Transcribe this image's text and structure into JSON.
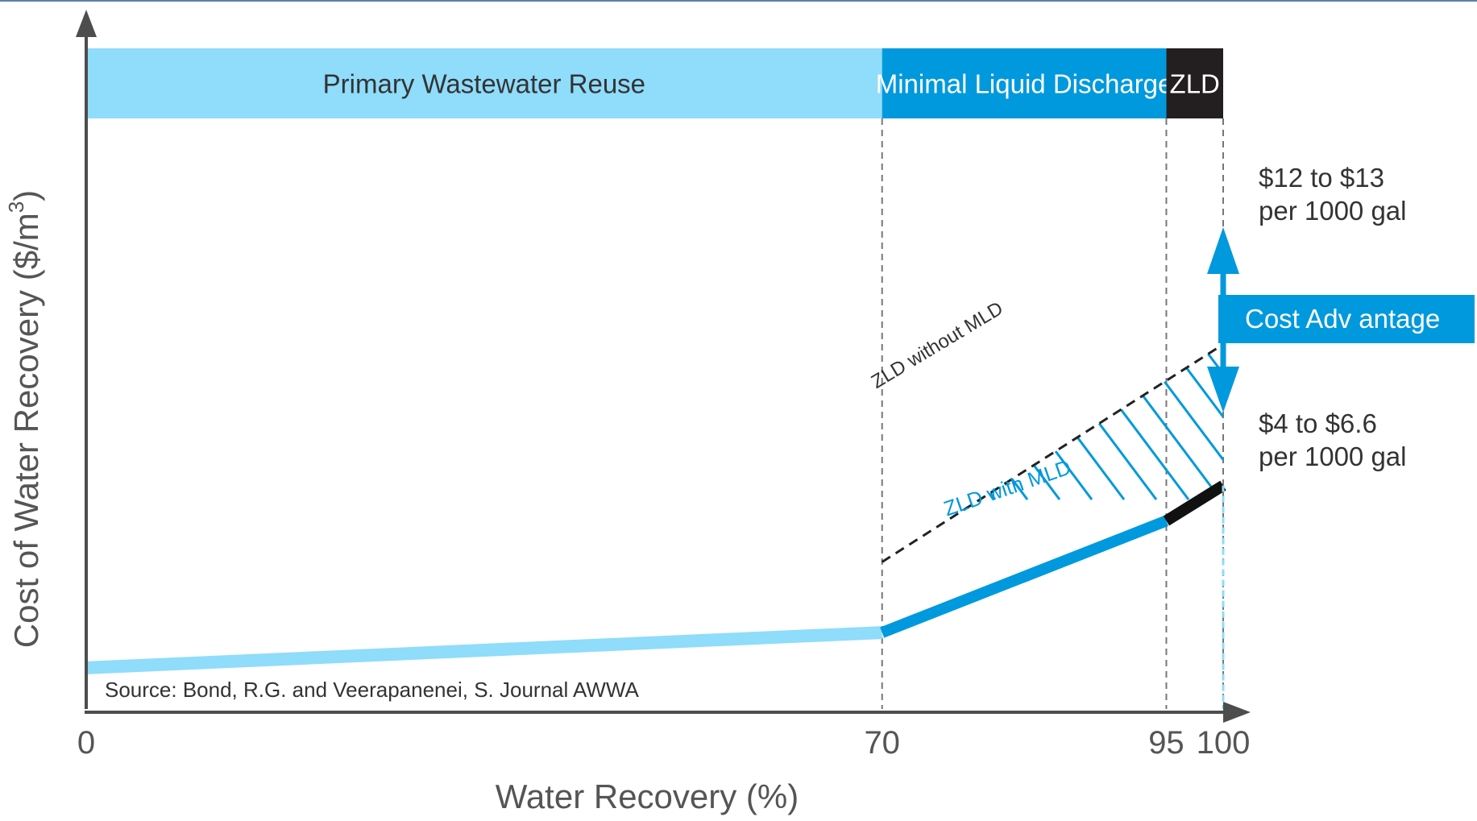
{
  "chart_data": {
    "type": "line",
    "title": "",
    "xlabel": "Water Recovery (%)",
    "ylabel": "Cost of Water Recovery ($/m",
    "ylabel_sup": "3",
    "ylabel_close": ")",
    "xlim": [
      0,
      100
    ],
    "xticks": [
      {
        "value": 0,
        "label": "0"
      },
      {
        "value": 70,
        "label": "70"
      },
      {
        "value": 95,
        "label": "95"
      },
      {
        "value": 100,
        "label": "100"
      }
    ],
    "y_scale": "relative (no numeric ticks)",
    "zones": [
      {
        "label": "Primary  Wastewater Reuse",
        "from": 0,
        "to": 70,
        "color": "#8fdcfb",
        "text_color": "#333333"
      },
      {
        "label": "Minimal Liquid Discharge",
        "from": 70,
        "to": 95,
        "color": "#0099dd",
        "text_color": "#ffffff"
      },
      {
        "label": "ZLD",
        "from": 95,
        "to": 100,
        "color": "#231f20",
        "text_color": "#ffffff"
      }
    ],
    "series": [
      {
        "name": "",
        "segment": "Primary Wastewater Reuse",
        "color": "#8fdcfb",
        "x": [
          0,
          70
        ],
        "y": [
          0.07,
          0.13
        ]
      },
      {
        "name": "ZLD with MLD",
        "color": "#0099dd",
        "x": [
          70,
          95
        ],
        "y": [
          0.13,
          0.32
        ]
      },
      {
        "name": "",
        "segment": "ZLD",
        "color": "#111111",
        "x": [
          95,
          100
        ],
        "y": [
          0.32,
          0.38
        ]
      },
      {
        "name": "ZLD without MLD",
        "style": "dashed",
        "color": "#222222",
        "x": [
          70,
          100
        ],
        "y": [
          0.25,
          0.62
        ]
      }
    ],
    "annotations": {
      "upper_line1": "$12 to $13",
      "upper_line2": "per 1000 gal",
      "lower_line1": "$4 to $6.6",
      "lower_line2": "per 1000 gal",
      "cost_advantage": "Cost Adv antage",
      "source": "Source:  Bond, R.G. and Veerapanenei, S. Journal AWWA"
    },
    "colors": {
      "light_blue": "#8fdcfb",
      "blue": "#0099dd",
      "black": "#231f20",
      "axis": "#4d4d4d",
      "text": "#333333",
      "top_border": "#5a7fa8"
    }
  }
}
